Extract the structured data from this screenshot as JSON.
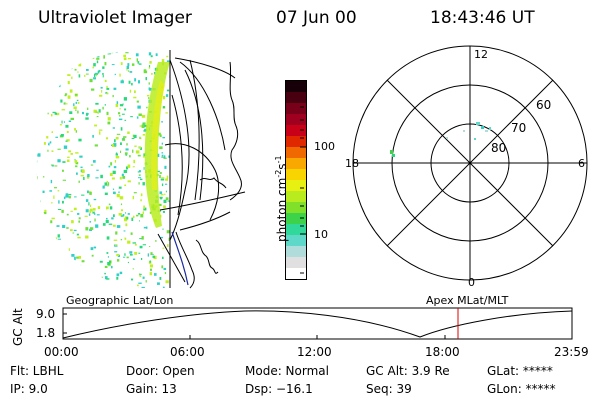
{
  "header": {
    "instrument": "Ultraviolet Imager",
    "date": "07 Jun 00",
    "time": "18:43:46 UT"
  },
  "colorbar": {
    "unit_label": "photon cm",
    "unit_exp1": "-2",
    "unit_mid": "s",
    "unit_exp2": "-1",
    "tick_labels": [
      "100",
      "10"
    ],
    "colors": [
      "#ffffff",
      "#e0e0e0",
      "#b0dcdc",
      "#5ed8c8",
      "#30d89a",
      "#3cd24a",
      "#80e02a",
      "#b8ec1e",
      "#e8f012",
      "#f8d400",
      "#f8a800",
      "#f06800",
      "#e02800",
      "#c80018",
      "#a00020",
      "#780018",
      "#480010",
      "#180008"
    ]
  },
  "map_left": {
    "label": "Geographic Lat/Lon",
    "emission_colors": [
      "#2ad87c",
      "#6ee03c",
      "#30d0c8",
      "#c0f020"
    ]
  },
  "map_right": {
    "label": "Apex  MLat/MLT",
    "mlt_labels": [
      "12",
      "18",
      "6",
      "0"
    ],
    "lat_labels": [
      "60",
      "70",
      "80"
    ]
  },
  "altitude_plot": {
    "ylabel": "GC Alt",
    "y_ticks": [
      "9.0",
      "1.8"
    ],
    "x_ticks": [
      "00:00",
      "06:00",
      "12:00",
      "18:00",
      "23:59"
    ],
    "marker_color": "#e00000"
  },
  "footer": {
    "flt": "Flt:  LBHL",
    "ip": "IP:  9.0",
    "door": "Door:  Open",
    "gain": "Gain:  13",
    "mode": "Mode:  Normal",
    "dsp": "Dsp:   −16.1",
    "gcalt": "GC Alt:  3.9 Re",
    "seq": "Seq:  39",
    "glat": "GLat:  *****",
    "glon": "GLon:  *****"
  }
}
